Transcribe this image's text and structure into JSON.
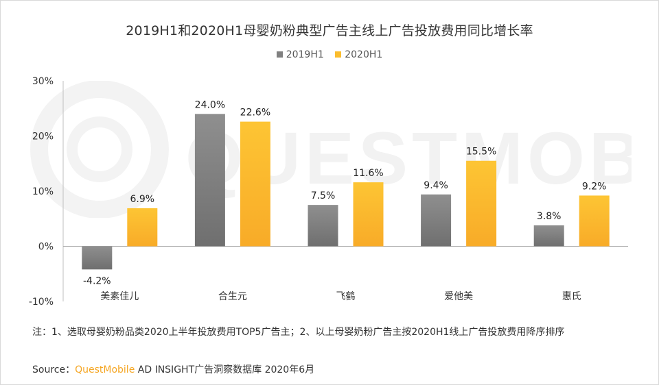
{
  "chart_data": {
    "type": "bar",
    "title": "2019H1和2020H1母婴奶粉典型广告主线上广告投放费用同比增长率",
    "categories": [
      "美素佳儿",
      "合生元",
      "飞鹤",
      "爱他美",
      "惠氏"
    ],
    "series": [
      {
        "name": "2019H1",
        "values": [
          -4.2,
          24.0,
          7.5,
          9.4,
          3.8
        ],
        "labels": [
          "-4.2%",
          "24.0%",
          "7.5%",
          "9.4%",
          "3.8%"
        ]
      },
      {
        "name": "2020H1",
        "values": [
          6.9,
          22.6,
          11.6,
          15.5,
          9.2
        ],
        "labels": [
          "6.9%",
          "22.6%",
          "11.6%",
          "15.5%",
          "9.2%"
        ]
      }
    ],
    "ylim": [
      -10,
      30
    ],
    "yticks": [
      30,
      20,
      10,
      0,
      -10
    ],
    "ytick_labels": [
      "30%",
      "20%",
      "10%",
      "0%",
      "-10%"
    ],
    "xlabel": "",
    "ylabel": "",
    "legend_position": "top-center",
    "grid": false,
    "colors": {
      "2019H1": "#8c8c8c",
      "2020H1": "#fbbd2e"
    }
  },
  "note": "注：1、选取母婴奶粉品类2020上半年投放费用TOP5广告主；2、以上母婴奶粉广告主按2020H1线上广告投放费用降序排序",
  "source": {
    "prefix": "Source：",
    "brand": "QuestMobile",
    "rest": " AD INSIGHT广告洞察数据库 2020年6月"
  },
  "watermark": "QUESTMOBILE"
}
